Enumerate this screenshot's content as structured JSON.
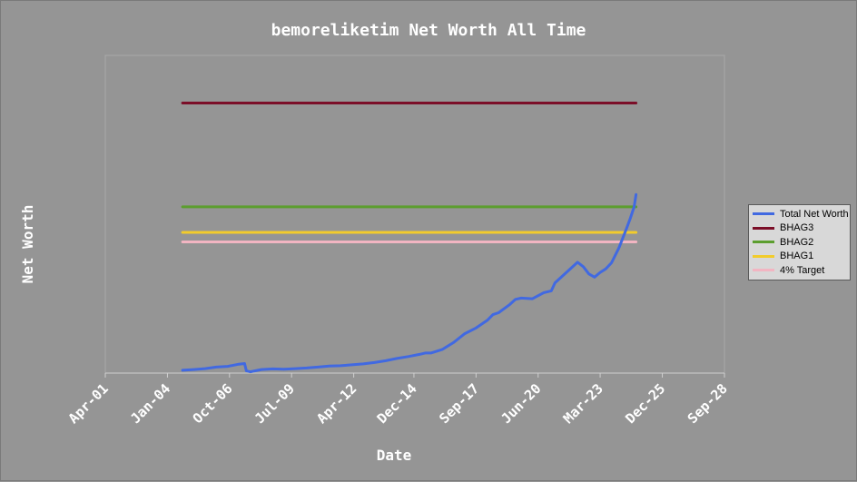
{
  "chart_data": {
    "type": "line",
    "title": "bemoreliketim Net Worth All Time",
    "xlabel": "Date",
    "ylabel": "Net Worth",
    "x_tick_labels": [
      "Apr-01",
      "Jan-04",
      "Oct-06",
      "Jul-09",
      "Apr-12",
      "Dec-14",
      "Sep-17",
      "Jun-20",
      "Mar-23",
      "Dec-25",
      "Sep-28"
    ],
    "x_ticks": [
      "2001-04-01",
      "2004-01-01",
      "2006-10-01",
      "2009-07-01",
      "2012-04-01",
      "2014-12-01",
      "2017-09-01",
      "2020-06-01",
      "2023-03-01",
      "2025-12-01",
      "2028-09-01"
    ],
    "xlim": [
      "2001-04-01",
      "2028-09-01"
    ],
    "y_tick_labels": [],
    "ylim": [
      0,
      100
    ],
    "grid": false,
    "legend_position": "right",
    "series": [
      {
        "name": "Total Net Worth",
        "color": "#4169e1",
        "x": [
          "2004-09-01",
          "2005-03-01",
          "2005-09-01",
          "2006-03-01",
          "2006-09-01",
          "2007-03-01",
          "2007-06-01",
          "2007-07-01",
          "2007-09-01",
          "2008-03-01",
          "2008-09-01",
          "2009-03-01",
          "2009-09-01",
          "2010-03-01",
          "2010-09-01",
          "2011-03-01",
          "2011-09-01",
          "2012-03-01",
          "2012-09-01",
          "2013-03-01",
          "2013-09-01",
          "2014-03-01",
          "2014-09-01",
          "2015-03-01",
          "2015-06-01",
          "2015-09-01",
          "2016-03-01",
          "2016-09-01",
          "2017-03-01",
          "2017-09-01",
          "2018-03-01",
          "2018-06-01",
          "2018-09-01",
          "2019-03-01",
          "2019-06-01",
          "2019-09-01",
          "2020-03-01",
          "2020-09-01",
          "2021-01-01",
          "2021-03-01",
          "2021-09-01",
          "2022-03-01",
          "2022-06-01",
          "2022-09-01",
          "2022-12-01",
          "2023-03-01",
          "2023-06-01",
          "2023-09-01",
          "2024-01-01",
          "2024-05-01",
          "2024-07-01",
          "2024-09-01",
          "2024-10-01"
        ],
        "y": [
          0.9,
          1.1,
          1.4,
          1.9,
          2.1,
          2.8,
          3.0,
          0.7,
          0.4,
          1.1,
          1.3,
          1.2,
          1.4,
          1.6,
          1.9,
          2.2,
          2.3,
          2.6,
          2.9,
          3.3,
          3.9,
          4.6,
          5.2,
          5.9,
          6.3,
          6.3,
          7.4,
          9.6,
          12.4,
          14.2,
          16.6,
          18.4,
          19.0,
          21.6,
          23.2,
          23.6,
          23.4,
          25.3,
          25.9,
          28.4,
          31.7,
          34.9,
          33.5,
          31.2,
          30.2,
          31.7,
          32.8,
          34.7,
          39.5,
          45.5,
          48.7,
          52.3,
          56.2
        ]
      },
      {
        "name": "BHAG3",
        "color": "#7b0e28",
        "x": [
          "2004-09-01",
          "2024-10-01"
        ],
        "y": [
          85,
          85
        ]
      },
      {
        "name": "BHAG2",
        "color": "#5c9e2f",
        "x": [
          "2004-09-01",
          "2024-10-01"
        ],
        "y": [
          52.3,
          52.3
        ]
      },
      {
        "name": "BHAG1",
        "color": "#f2cc2b",
        "x": [
          "2004-09-01",
          "2024-10-01"
        ],
        "y": [
          44.3,
          44.3
        ]
      },
      {
        "name": "4% Target",
        "color": "#f2b5c2",
        "x": [
          "2004-09-01",
          "2024-10-01"
        ],
        "y": [
          41.3,
          41.3
        ]
      }
    ]
  }
}
